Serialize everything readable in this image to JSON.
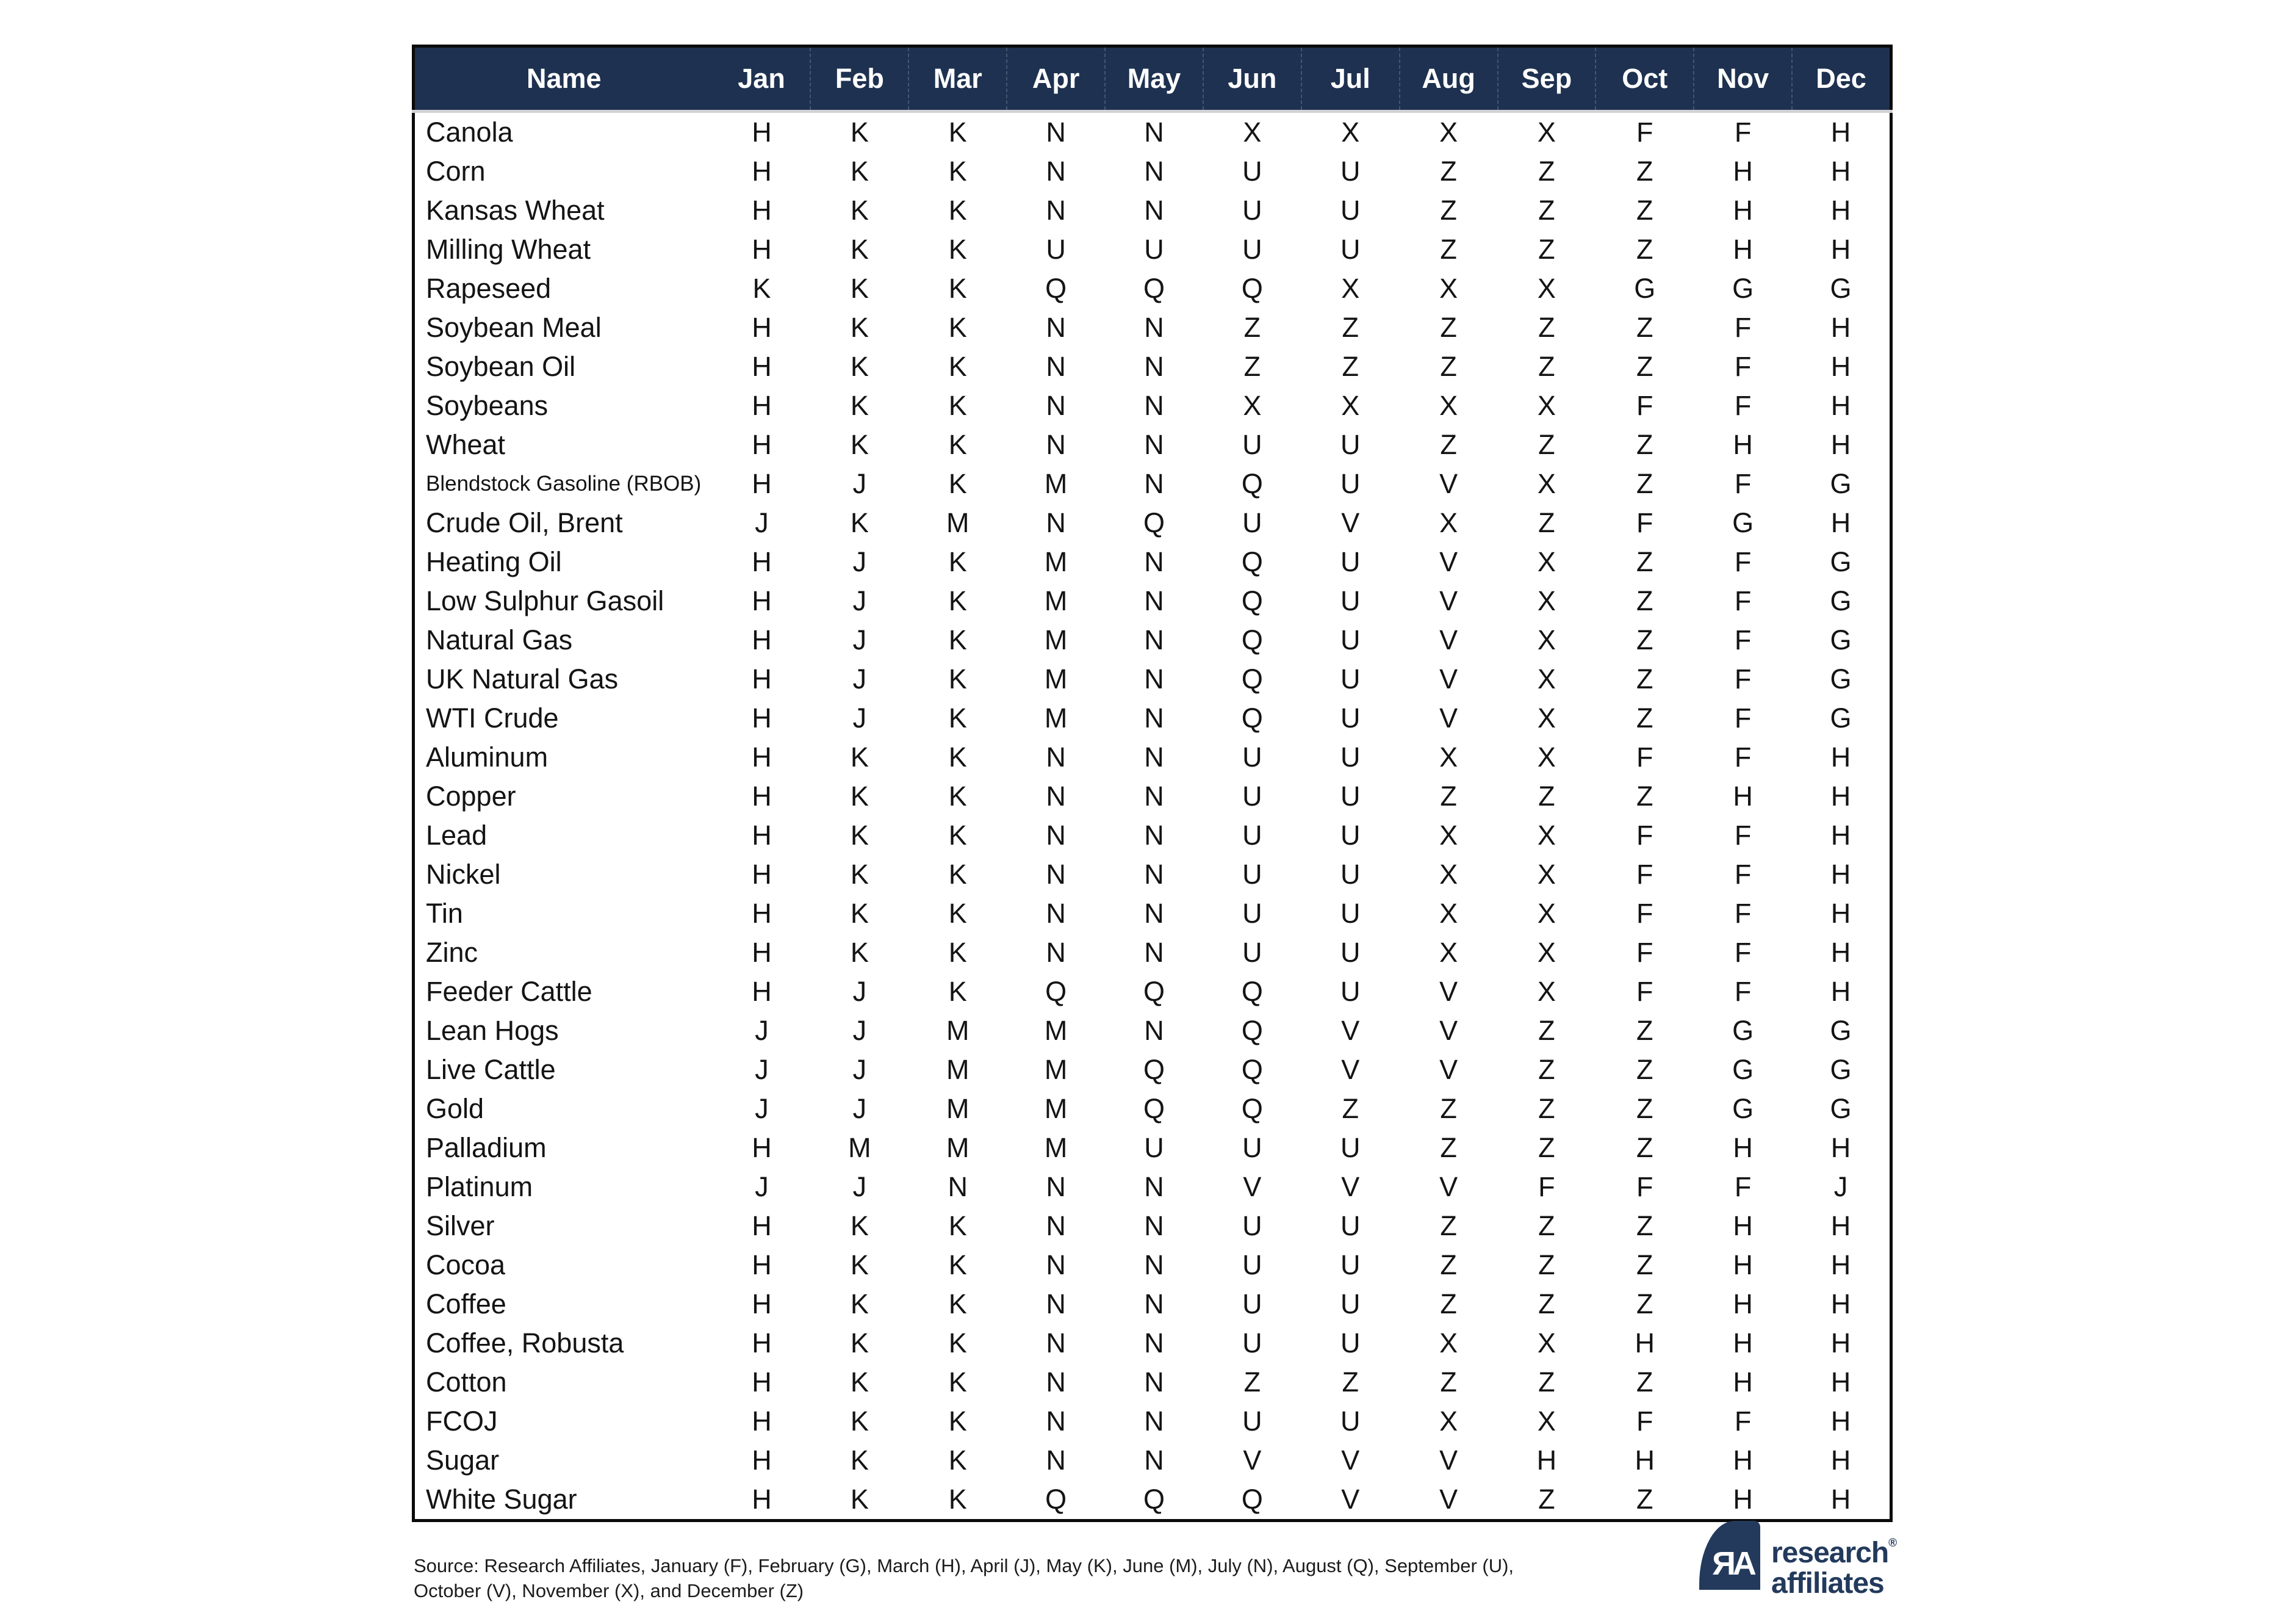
{
  "chart_data": {
    "type": "table",
    "columns": [
      "Name",
      "Jan",
      "Feb",
      "Mar",
      "Apr",
      "May",
      "Jun",
      "Jul",
      "Aug",
      "Sep",
      "Oct",
      "Nov",
      "Dec"
    ],
    "rows": [
      {
        "name": "Canola",
        "codes": [
          "H",
          "K",
          "K",
          "N",
          "N",
          "X",
          "X",
          "X",
          "X",
          "F",
          "F",
          "H"
        ]
      },
      {
        "name": "Corn",
        "codes": [
          "H",
          "K",
          "K",
          "N",
          "N",
          "U",
          "U",
          "Z",
          "Z",
          "Z",
          "H",
          "H"
        ]
      },
      {
        "name": "Kansas Wheat",
        "codes": [
          "H",
          "K",
          "K",
          "N",
          "N",
          "U",
          "U",
          "Z",
          "Z",
          "Z",
          "H",
          "H"
        ]
      },
      {
        "name": "Milling Wheat",
        "codes": [
          "H",
          "K",
          "K",
          "U",
          "U",
          "U",
          "U",
          "Z",
          "Z",
          "Z",
          "H",
          "H"
        ]
      },
      {
        "name": "Rapeseed",
        "codes": [
          "K",
          "K",
          "K",
          "Q",
          "Q",
          "Q",
          "X",
          "X",
          "X",
          "G",
          "G",
          "G"
        ]
      },
      {
        "name": "Soybean Meal",
        "codes": [
          "H",
          "K",
          "K",
          "N",
          "N",
          "Z",
          "Z",
          "Z",
          "Z",
          "Z",
          "F",
          "H"
        ]
      },
      {
        "name": "Soybean Oil",
        "codes": [
          "H",
          "K",
          "K",
          "N",
          "N",
          "Z",
          "Z",
          "Z",
          "Z",
          "Z",
          "F",
          "H"
        ]
      },
      {
        "name": "Soybeans",
        "codes": [
          "H",
          "K",
          "K",
          "N",
          "N",
          "X",
          "X",
          "X",
          "X",
          "F",
          "F",
          "H"
        ]
      },
      {
        "name": "Wheat",
        "codes": [
          "H",
          "K",
          "K",
          "N",
          "N",
          "U",
          "U",
          "Z",
          "Z",
          "Z",
          "H",
          "H"
        ]
      },
      {
        "name": "Blendstock Gasoline (RBOB)",
        "codes": [
          "H",
          "J",
          "K",
          "M",
          "N",
          "Q",
          "U",
          "V",
          "X",
          "Z",
          "F",
          "G"
        ]
      },
      {
        "name": "Crude Oil, Brent",
        "codes": [
          "J",
          "K",
          "M",
          "N",
          "Q",
          "U",
          "V",
          "X",
          "Z",
          "F",
          "G",
          "H"
        ]
      },
      {
        "name": "Heating Oil",
        "codes": [
          "H",
          "J",
          "K",
          "M",
          "N",
          "Q",
          "U",
          "V",
          "X",
          "Z",
          "F",
          "G"
        ]
      },
      {
        "name": "Low Sulphur Gasoil",
        "codes": [
          "H",
          "J",
          "K",
          "M",
          "N",
          "Q",
          "U",
          "V",
          "X",
          "Z",
          "F",
          "G"
        ]
      },
      {
        "name": "Natural Gas",
        "codes": [
          "H",
          "J",
          "K",
          "M",
          "N",
          "Q",
          "U",
          "V",
          "X",
          "Z",
          "F",
          "G"
        ]
      },
      {
        "name": "UK Natural Gas",
        "codes": [
          "H",
          "J",
          "K",
          "M",
          "N",
          "Q",
          "U",
          "V",
          "X",
          "Z",
          "F",
          "G"
        ]
      },
      {
        "name": "WTI Crude",
        "codes": [
          "H",
          "J",
          "K",
          "M",
          "N",
          "Q",
          "U",
          "V",
          "X",
          "Z",
          "F",
          "G"
        ]
      },
      {
        "name": "Aluminum",
        "codes": [
          "H",
          "K",
          "K",
          "N",
          "N",
          "U",
          "U",
          "X",
          "X",
          "F",
          "F",
          "H"
        ]
      },
      {
        "name": "Copper",
        "codes": [
          "H",
          "K",
          "K",
          "N",
          "N",
          "U",
          "U",
          "Z",
          "Z",
          "Z",
          "H",
          "H"
        ]
      },
      {
        "name": "Lead",
        "codes": [
          "H",
          "K",
          "K",
          "N",
          "N",
          "U",
          "U",
          "X",
          "X",
          "F",
          "F",
          "H"
        ]
      },
      {
        "name": "Nickel",
        "codes": [
          "H",
          "K",
          "K",
          "N",
          "N",
          "U",
          "U",
          "X",
          "X",
          "F",
          "F",
          "H"
        ]
      },
      {
        "name": "Tin",
        "codes": [
          "H",
          "K",
          "K",
          "N",
          "N",
          "U",
          "U",
          "X",
          "X",
          "F",
          "F",
          "H"
        ]
      },
      {
        "name": "Zinc",
        "codes": [
          "H",
          "K",
          "K",
          "N",
          "N",
          "U",
          "U",
          "X",
          "X",
          "F",
          "F",
          "H"
        ]
      },
      {
        "name": "Feeder Cattle",
        "codes": [
          "H",
          "J",
          "K",
          "Q",
          "Q",
          "Q",
          "U",
          "V",
          "X",
          "F",
          "F",
          "H"
        ]
      },
      {
        "name": "Lean Hogs",
        "codes": [
          "J",
          "J",
          "M",
          "M",
          "N",
          "Q",
          "V",
          "V",
          "Z",
          "Z",
          "G",
          "G"
        ]
      },
      {
        "name": "Live Cattle",
        "codes": [
          "J",
          "J",
          "M",
          "M",
          "Q",
          "Q",
          "V",
          "V",
          "Z",
          "Z",
          "G",
          "G"
        ]
      },
      {
        "name": "Gold",
        "codes": [
          "J",
          "J",
          "M",
          "M",
          "Q",
          "Q",
          "Z",
          "Z",
          "Z",
          "Z",
          "G",
          "G"
        ]
      },
      {
        "name": "Palladium",
        "codes": [
          "H",
          "M",
          "M",
          "M",
          "U",
          "U",
          "U",
          "Z",
          "Z",
          "Z",
          "H",
          "H"
        ]
      },
      {
        "name": "Platinum",
        "codes": [
          "J",
          "J",
          "N",
          "N",
          "N",
          "V",
          "V",
          "V",
          "F",
          "F",
          "F",
          "J"
        ]
      },
      {
        "name": "Silver",
        "codes": [
          "H",
          "K",
          "K",
          "N",
          "N",
          "U",
          "U",
          "Z",
          "Z",
          "Z",
          "H",
          "H"
        ]
      },
      {
        "name": "Cocoa",
        "codes": [
          "H",
          "K",
          "K",
          "N",
          "N",
          "U",
          "U",
          "Z",
          "Z",
          "Z",
          "H",
          "H"
        ]
      },
      {
        "name": "Coffee",
        "codes": [
          "H",
          "K",
          "K",
          "N",
          "N",
          "U",
          "U",
          "Z",
          "Z",
          "Z",
          "H",
          "H"
        ]
      },
      {
        "name": "Coffee, Robusta",
        "codes": [
          "H",
          "K",
          "K",
          "N",
          "N",
          "U",
          "U",
          "X",
          "X",
          "H",
          "H",
          "H"
        ]
      },
      {
        "name": "Cotton",
        "codes": [
          "H",
          "K",
          "K",
          "N",
          "N",
          "Z",
          "Z",
          "Z",
          "Z",
          "Z",
          "H",
          "H"
        ]
      },
      {
        "name": "FCOJ",
        "codes": [
          "H",
          "K",
          "K",
          "N",
          "N",
          "U",
          "U",
          "X",
          "X",
          "F",
          "F",
          "H"
        ]
      },
      {
        "name": "Sugar",
        "codes": [
          "H",
          "K",
          "K",
          "N",
          "N",
          "V",
          "V",
          "V",
          "H",
          "H",
          "H",
          "H"
        ]
      },
      {
        "name": "White Sugar",
        "codes": [
          "H",
          "K",
          "K",
          "Q",
          "Q",
          "Q",
          "V",
          "V",
          "Z",
          "Z",
          "H",
          "H"
        ]
      }
    ]
  },
  "footer": {
    "line1": "Source: Research Affiliates, January (F), February (G), March (H), April (J), May (K), June (M), July (N), August (Q), September (U),",
    "line2": "October (V), November (X), and December (Z)"
  },
  "logo": {
    "monogram": "ЯA",
    "line1": "research",
    "line2": "affiliates",
    "registered": "®"
  },
  "colors": {
    "header_bg": "#1e3150",
    "header_text": "#ffffff",
    "body_text": "#141414",
    "table_border": "#0a0a0a",
    "header_divider": "#d2d2d6",
    "logo_navy": "#233a5c"
  }
}
